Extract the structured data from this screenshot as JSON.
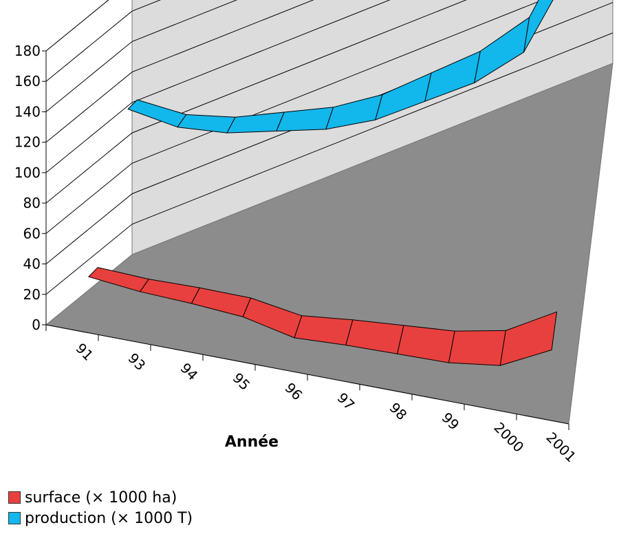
{
  "chart_data": {
    "type": "line",
    "view": "3d-ribbon",
    "categories": [
      "91",
      "93",
      "94",
      "95",
      "96",
      "97",
      "98",
      "99",
      "2000",
      "2001"
    ],
    "xlabel": "Année",
    "ylabel": "",
    "ylim": [
      0,
      180
    ],
    "yticks": [
      "0",
      "20",
      "40",
      "60",
      "80",
      "100",
      "120",
      "140",
      "160",
      "180"
    ],
    "grid": true,
    "legend_position": "bottom-left",
    "series": [
      {
        "name": "surface (× 1000 ha)",
        "color": "#E8403E",
        "values": [
          24,
          17,
          12,
          6,
          -5,
          -7,
          -10,
          -13,
          -12,
          1
        ]
      },
      {
        "name": "production (× 1000 T)",
        "color": "#12B7EC",
        "values": [
          108,
          90,
          80,
          75,
          70,
          70,
          76,
          82,
          96,
          148
        ]
      }
    ]
  }
}
